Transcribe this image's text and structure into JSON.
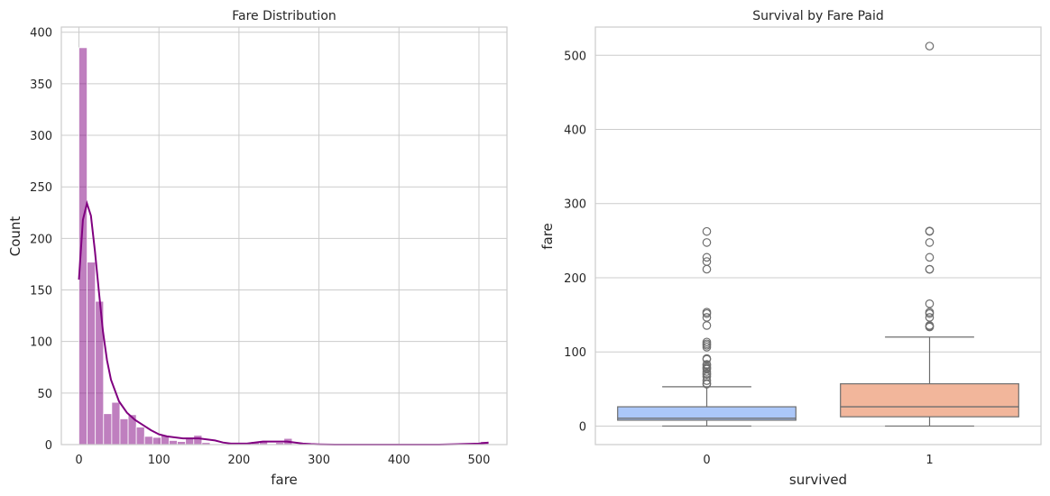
{
  "chart_data": [
    {
      "type": "bar",
      "title": "Fare Distribution",
      "xlabel": "fare",
      "ylabel": "Count",
      "xlim": [
        -22,
        535
      ],
      "ylim": [
        0,
        405
      ],
      "xticks": [
        0,
        100,
        200,
        300,
        400,
        500
      ],
      "yticks": [
        0,
        50,
        100,
        150,
        200,
        250,
        300,
        350,
        400
      ],
      "grid": true,
      "bar_color": "#800080",
      "kde_color": "#800080",
      "bins": [
        {
          "x0": 0,
          "x1": 10.25,
          "count": 385
        },
        {
          "x0": 10.25,
          "x1": 20.5,
          "count": 177
        },
        {
          "x0": 20.5,
          "x1": 30.75,
          "count": 139
        },
        {
          "x0": 30.75,
          "x1": 41.0,
          "count": 30
        },
        {
          "x0": 41.0,
          "x1": 51.25,
          "count": 41
        },
        {
          "x0": 51.25,
          "x1": 61.5,
          "count": 25
        },
        {
          "x0": 61.5,
          "x1": 71.75,
          "count": 29
        },
        {
          "x0": 71.75,
          "x1": 82.0,
          "count": 17
        },
        {
          "x0": 82.0,
          "x1": 92.25,
          "count": 8
        },
        {
          "x0": 92.25,
          "x1": 102.5,
          "count": 7
        },
        {
          "x0": 102.5,
          "x1": 112.75,
          "count": 9
        },
        {
          "x0": 112.75,
          "x1": 123.0,
          "count": 4
        },
        {
          "x0": 123.0,
          "x1": 133.25,
          "count": 3
        },
        {
          "x0": 133.25,
          "x1": 143.5,
          "count": 7
        },
        {
          "x0": 143.5,
          "x1": 153.75,
          "count": 9
        },
        {
          "x0": 153.75,
          "x1": 164.0,
          "count": 2
        },
        {
          "x0": 205.0,
          "x1": 215.25,
          "count": 2
        },
        {
          "x0": 215.25,
          "x1": 225.5,
          "count": 3
        },
        {
          "x0": 225.5,
          "x1": 235.75,
          "count": 3
        },
        {
          "x0": 246.0,
          "x1": 256.25,
          "count": 2
        },
        {
          "x0": 256.25,
          "x1": 266.5,
          "count": 6
        },
        {
          "x0": 502.0,
          "x1": 512.3,
          "count": 3
        }
      ],
      "kde": {
        "x": [
          0,
          5,
          10,
          15,
          20,
          25,
          30,
          35,
          40,
          50,
          60,
          70,
          80,
          90,
          100,
          110,
          120,
          130,
          140,
          150,
          160,
          170,
          180,
          190,
          200,
          210,
          220,
          230,
          240,
          250,
          260,
          270,
          280,
          290,
          300,
          320,
          350,
          400,
          450,
          500,
          512
        ],
        "y": [
          160,
          218,
          234,
          222,
          188,
          148,
          110,
          82,
          63,
          42,
          31,
          24,
          19,
          14,
          10,
          8,
          7,
          6,
          6,
          6,
          5,
          4,
          2,
          1,
          1,
          1,
          2,
          3,
          3,
          3,
          3,
          2,
          1,
          0.5,
          0.3,
          0,
          0,
          0,
          0,
          1,
          2
        ]
      }
    },
    {
      "type": "box",
      "title": "Survival by Fare Paid",
      "xlabel": "survived",
      "ylabel": "fare",
      "categories": [
        "0",
        "1"
      ],
      "ylim": [
        -25,
        538
      ],
      "yticks": [
        0,
        100,
        200,
        300,
        400,
        500
      ],
      "grid": true,
      "boxes": [
        {
          "category": "0",
          "color": "#abc7f9",
          "q1": 7.9,
          "median": 10.5,
          "q3": 26,
          "whisker_low": 0,
          "whisker_high": 53,
          "outliers": [
            56.5,
            57.5,
            61.2,
            66.6,
            69.5,
            71,
            73.5,
            76.7,
            78,
            79.6,
            82.2,
            83.2,
            90,
            91.1,
            106.4,
            108.9,
            110.9,
            113.3,
            135.6,
            146.5,
            151.6,
            153.5,
            211.5,
            221.8,
            227.5,
            247.5,
            262.4
          ]
        },
        {
          "category": "1",
          "color": "#f2b69b",
          "q1": 12.5,
          "median": 26,
          "q3": 57,
          "whisker_low": 0,
          "whisker_high": 120,
          "outliers": [
            133.6,
            134.5,
            135.6,
            146.5,
            151.6,
            153.5,
            164.9,
            211.3,
            211.5,
            227.5,
            247.5,
            262.4,
            263,
            512.3
          ]
        }
      ]
    }
  ]
}
